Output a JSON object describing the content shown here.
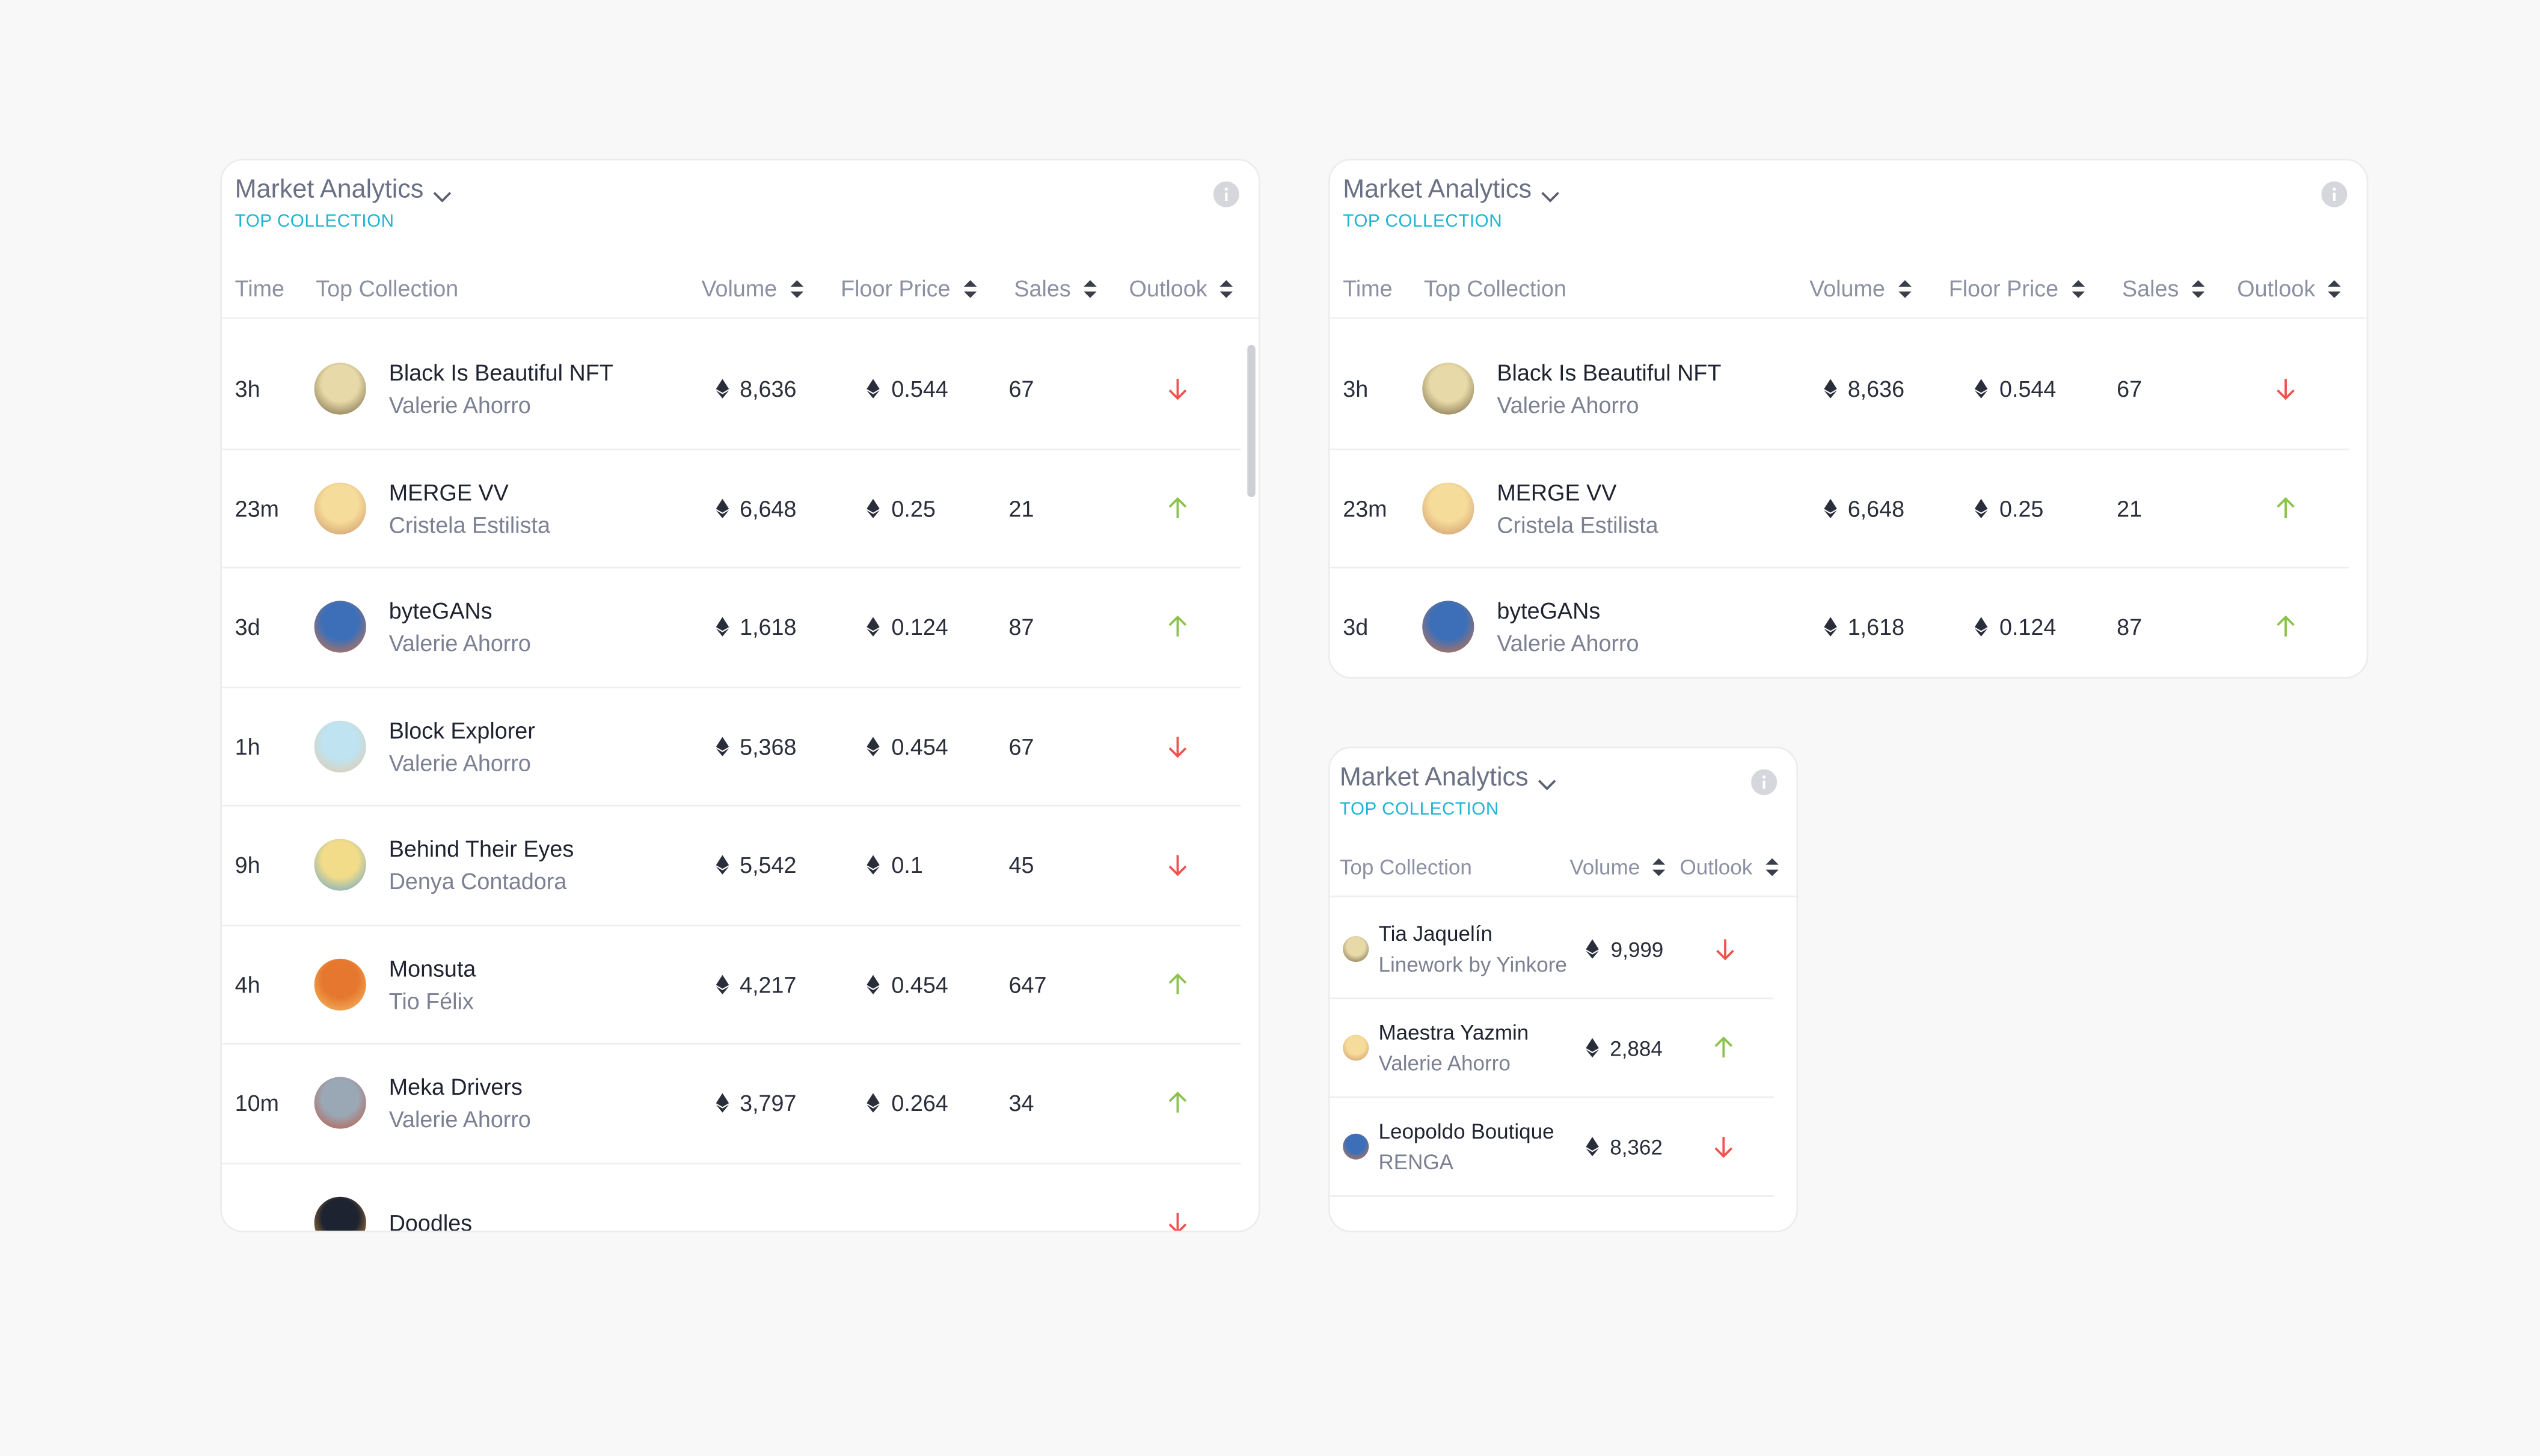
{
  "panels": [
    {
      "title": "Market Analytics",
      "subtitle": "TOP COLLECTION",
      "columns": [
        "Time",
        "Top Collection",
        "Volume",
        "Floor Price",
        "Sales",
        "Outlook"
      ],
      "rows": [
        {
          "time": "3h",
          "name": "Black Is Beautiful NFT",
          "author": "Valerie Ahorro",
          "volume": "8,636",
          "floor": "0.544",
          "sales": "67",
          "outlook": "down"
        },
        {
          "time": "23m",
          "name": "MERGE VV",
          "author": "Cristela Estilista",
          "volume": "6,648",
          "floor": "0.25",
          "sales": "21",
          "outlook": "up"
        },
        {
          "time": "3d",
          "name": "byteGANs",
          "author": "Valerie Ahorro",
          "volume": "1,618",
          "floor": "0.124",
          "sales": "87",
          "outlook": "up"
        },
        {
          "time": "1h",
          "name": "Block Explorer",
          "author": "Valerie Ahorro",
          "volume": "5,368",
          "floor": "0.454",
          "sales": "67",
          "outlook": "down"
        },
        {
          "time": "9h",
          "name": "Behind Their Eyes",
          "author": "Denya Contadora",
          "volume": "5,542",
          "floor": "0.1",
          "sales": "45",
          "outlook": "down"
        },
        {
          "time": "4h",
          "name": "Monsuta",
          "author": "Tio Félix",
          "volume": "4,217",
          "floor": "0.454",
          "sales": "647",
          "outlook": "up"
        },
        {
          "time": "10m",
          "name": "Meka Drivers",
          "author": "Valerie Ahorro",
          "volume": "3,797",
          "floor": "0.264",
          "sales": "34",
          "outlook": "up"
        },
        {
          "name": "Doodles",
          "outlook": "down"
        }
      ]
    },
    {
      "title": "Market Analytics",
      "subtitle": "TOP COLLECTION",
      "columns": [
        "Time",
        "Top Collection",
        "Volume",
        "Floor Price",
        "Sales",
        "Outlook"
      ],
      "rows": [
        {
          "time": "3h",
          "name": "Black Is Beautiful NFT",
          "author": "Valerie Ahorro",
          "volume": "8,636",
          "floor": "0.544",
          "sales": "67",
          "outlook": "down"
        },
        {
          "time": "23m",
          "name": "MERGE VV",
          "author": "Cristela Estilista",
          "volume": "6,648",
          "floor": "0.25",
          "sales": "21",
          "outlook": "up"
        },
        {
          "time": "3d",
          "name": "byteGANs",
          "author": "Valerie Ahorro",
          "volume": "1,618",
          "floor": "0.124",
          "sales": "87",
          "outlook": "up"
        }
      ]
    },
    {
      "title": "Market Analytics",
      "subtitle": "TOP COLLECTION",
      "columns": [
        "Top Collection",
        "Volume",
        "Outlook"
      ],
      "rows": [
        {
          "name": "Tia Jaquelín",
          "author": "Linework by Yinkore",
          "volume": "9,999",
          "outlook": "down"
        },
        {
          "name": "Maestra Yazmin",
          "author": "Valerie Ahorro",
          "volume": "2,884",
          "outlook": "up"
        },
        {
          "name": "Leopoldo Boutique",
          "author": "RENGA",
          "volume": "8,362",
          "outlook": "down"
        }
      ]
    }
  ]
}
